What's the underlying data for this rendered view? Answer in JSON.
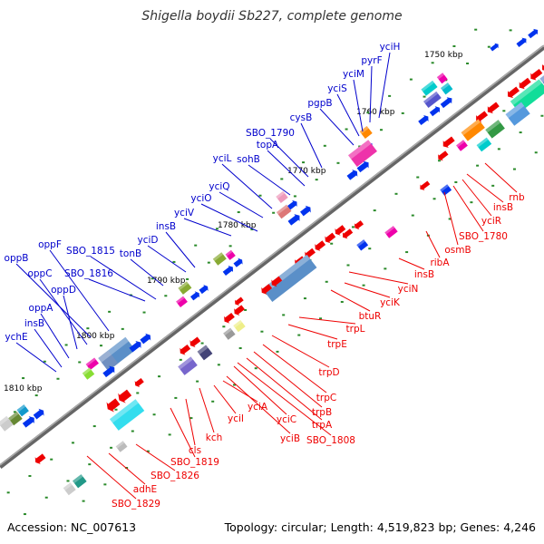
{
  "title": "Shigella boydii Sb227, complete genome",
  "accession": "Accession: NC_007613",
  "summary": "Topology: circular; Length: 4,519,823 bp; Genes: 4,246",
  "colors": {
    "plus_label": "#0000cc",
    "minus_label": "#ee0000",
    "backbone": "#777777"
  },
  "ticks": [
    "1750 kbp",
    "1760 kbp",
    "1770 kbp",
    "1780 kbp",
    "1790 kbp",
    "1800 kbp",
    "1810 kbp"
  ],
  "labels_plus": [
    "yciH",
    "pyrF",
    "yciM",
    "yciS",
    "pgpB",
    "cysB",
    "SBO_1790",
    "topA",
    "sohB",
    "yciL",
    "yciQ",
    "yciO",
    "yciV",
    "insB",
    "yciD",
    "tonB",
    "SBO_1815",
    "SBO_1816",
    "oppF",
    "oppB",
    "oppC",
    "oppD",
    "oppA",
    "insB",
    "ychE"
  ],
  "labels_minus": [
    "rnb",
    "insB",
    "yciR",
    "SBO_1780",
    "osmB",
    "ribA",
    "insB",
    "yciN",
    "yciK",
    "btuR",
    "trpL",
    "trpE",
    "trpD",
    "trpC",
    "trpB",
    "trpA",
    "SBO_1808",
    "yciC",
    "yciB",
    "yciA",
    "yciI",
    "kch",
    "cls",
    "SBO_1819",
    "SBO_1826",
    "adhE",
    "SBO_1829"
  ]
}
